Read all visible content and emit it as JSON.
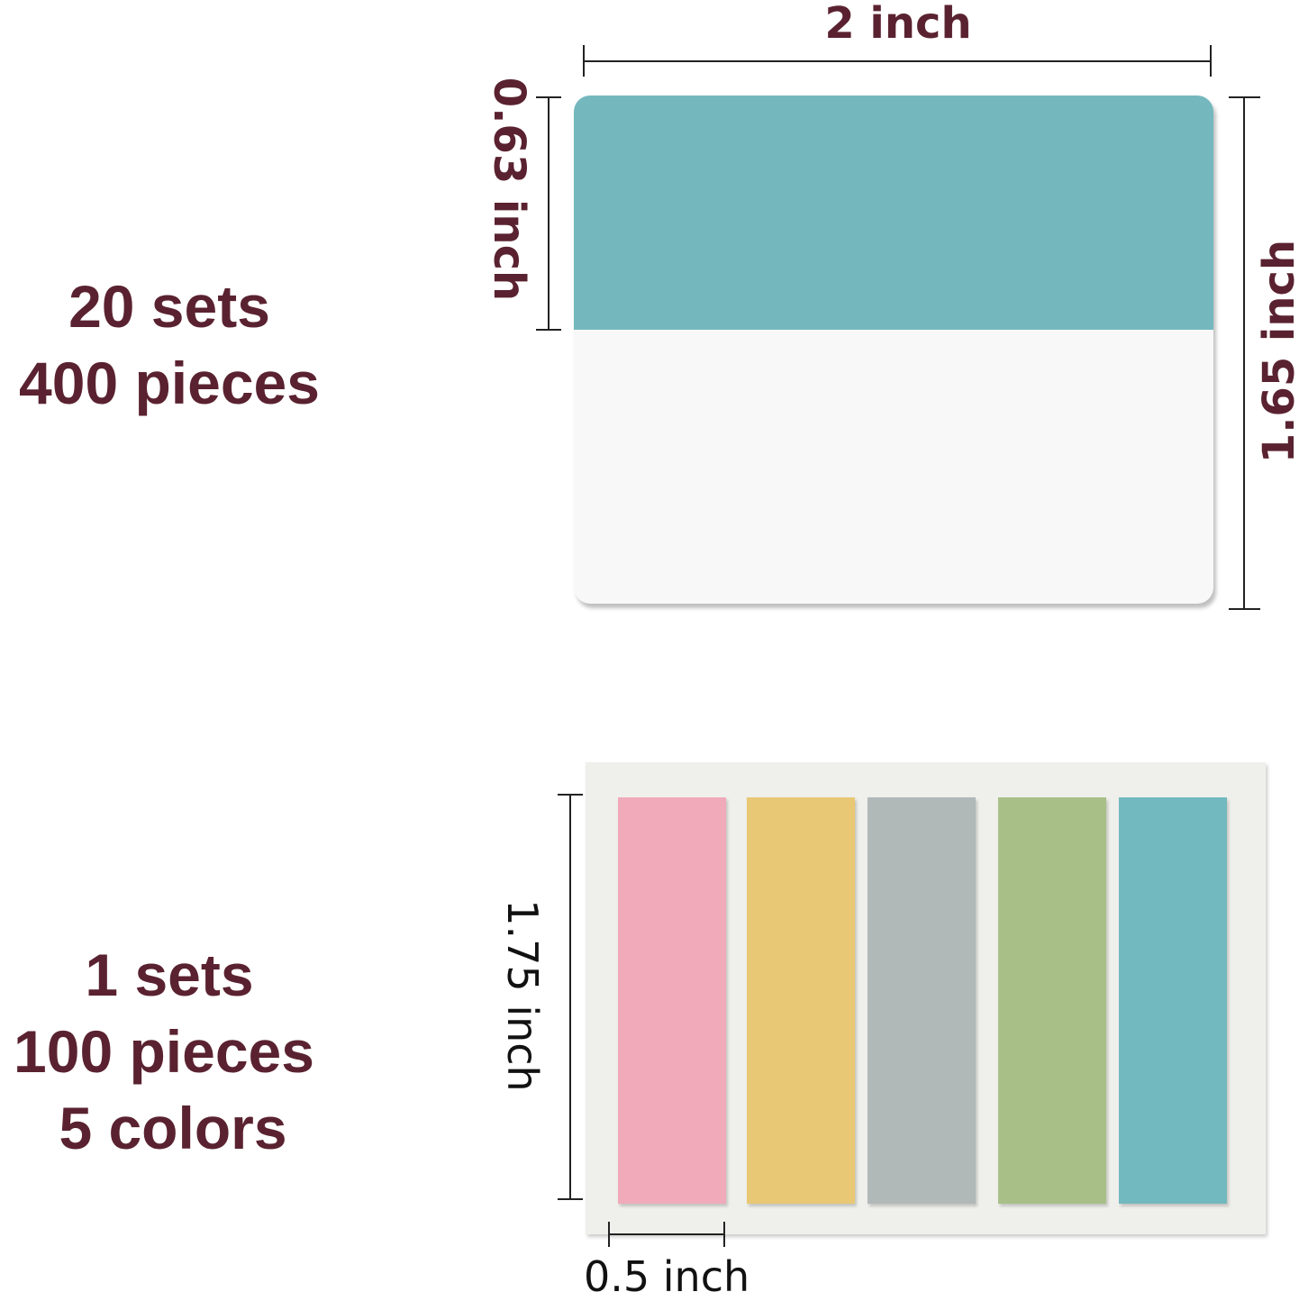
{
  "top_section": {
    "sets": "20 sets",
    "pieces": "400 pieces",
    "width_label": "2 inch",
    "header_height_label": "0.63 inch",
    "height_label": "1.65 inch",
    "header_color": "#74b8bd",
    "body_color": "#f8f8f8"
  },
  "bottom_section": {
    "sets": "1 sets",
    "pieces": "100 pieces",
    "colors": "5 colors",
    "height_label": "1.75 inch",
    "width_label": "0.5 inch",
    "strip_colors": [
      "#f0aaba",
      "#e8c874",
      "#b0b8b8",
      "#a8c088",
      "#72b8bf"
    ]
  },
  "text_color": "#5a2230"
}
